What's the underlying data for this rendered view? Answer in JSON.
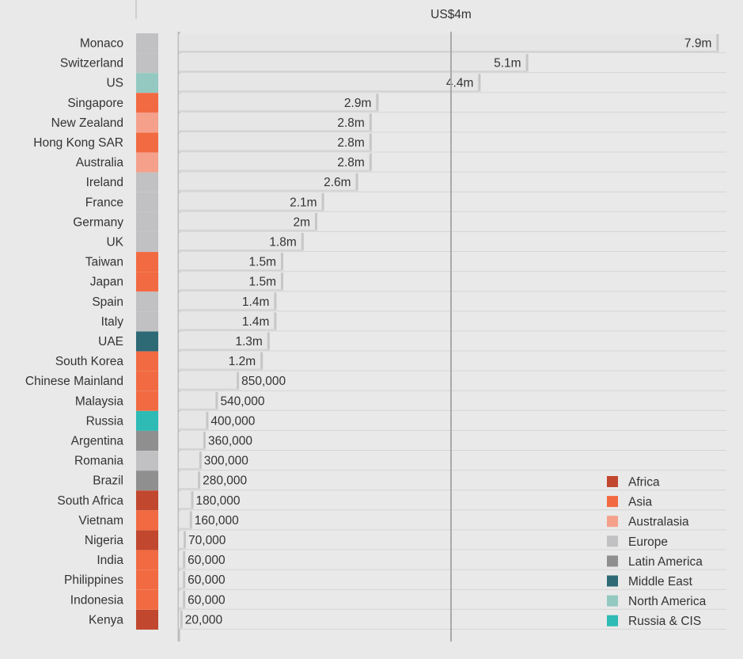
{
  "chart_data": {
    "type": "bar",
    "orientation": "horizontal",
    "reference_line": {
      "value": 4000000,
      "label": "US$4m"
    },
    "categories": [
      "Monaco",
      "Switzerland",
      "US",
      "Singapore",
      "New Zealand",
      "Hong Kong SAR",
      "Australia",
      "Ireland",
      "France",
      "Germany",
      "UK",
      "Taiwan",
      "Japan",
      "Spain",
      "Italy",
      "UAE",
      "South Korea",
      "Chinese Mainland",
      "Malaysia",
      "Russia",
      "Argentina",
      "Romania",
      "Brazil",
      "South Africa",
      "Vietnam",
      "Nigeria",
      "India",
      "Philippines",
      "Indonesia",
      "Kenya"
    ],
    "values": [
      7900000,
      5100000,
      4400000,
      2900000,
      2800000,
      2800000,
      2800000,
      2600000,
      2100000,
      2000000,
      1800000,
      1500000,
      1500000,
      1400000,
      1400000,
      1300000,
      1200000,
      850000,
      540000,
      400000,
      360000,
      300000,
      280000,
      180000,
      160000,
      70000,
      60000,
      60000,
      60000,
      20000
    ],
    "value_labels": [
      "7.9m",
      "5.1m",
      "4.4m",
      "2.9m",
      "2.8m",
      "2.8m",
      "2.8m",
      "2.6m",
      "2.1m",
      "2m",
      "1.8m",
      "1.5m",
      "1.5m",
      "1.4m",
      "1.4m",
      "1.3m",
      "1.2m",
      "850,000",
      "540,000",
      "400,000",
      "360,000",
      "300,000",
      "280,000",
      "180,000",
      "160,000",
      "70,000",
      "60,000",
      "60,000",
      "60,000",
      "20,000"
    ],
    "regions": [
      "Europe",
      "Europe",
      "North America",
      "Asia",
      "Australasia",
      "Asia",
      "Australasia",
      "Europe",
      "Europe",
      "Europe",
      "Europe",
      "Asia",
      "Asia",
      "Europe",
      "Europe",
      "Middle East",
      "Asia",
      "Asia",
      "Asia",
      "Russia & CIS",
      "Latin America",
      "Europe",
      "Latin America",
      "Africa",
      "Asia",
      "Africa",
      "Asia",
      "Asia",
      "Asia",
      "Africa"
    ],
    "legend": {
      "position": "bottom-right",
      "items": [
        {
          "name": "Africa",
          "color": "#c1472e"
        },
        {
          "name": "Asia",
          "color": "#f26a41"
        },
        {
          "name": "Australasia",
          "color": "#f5a08b"
        },
        {
          "name": "Europe",
          "color": "#c1c1c3"
        },
        {
          "name": "Latin America",
          "color": "#8f8f8f"
        },
        {
          "name": "Middle East",
          "color": "#2d6a75"
        },
        {
          "name": "North America",
          "color": "#93c9c1"
        },
        {
          "name": "Russia & CIS",
          "color": "#2ebab5"
        }
      ]
    },
    "xlim": [
      0,
      8000000
    ],
    "grid": false
  },
  "colors": {
    "background": "#e9e9e9",
    "bar_fill": "#e6e6e6",
    "bar_edge": "#c6c6c6",
    "reference_line": "#a9a9a9"
  }
}
